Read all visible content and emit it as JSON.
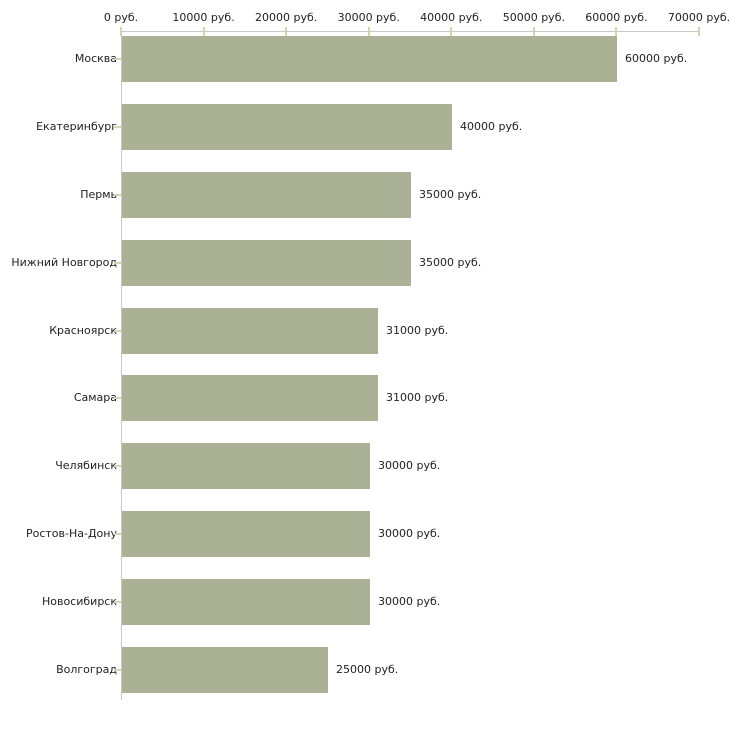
{
  "chart_data": {
    "type": "bar",
    "orientation": "horizontal",
    "title": "",
    "xlabel": "",
    "ylabel": "",
    "unit": "руб.",
    "categories": [
      "Москва",
      "Екатеринбург",
      "Пермь",
      "Нижний Новгород",
      "Красноярск",
      "Самара",
      "Челябинск",
      "Ростов-На-Дону",
      "Новосибирск",
      "Волгоград"
    ],
    "values": [
      60000,
      40000,
      35000,
      35000,
      31000,
      31000,
      30000,
      30000,
      30000,
      25000
    ],
    "value_labels": [
      "60000 руб.",
      "40000 руб.",
      "35000 руб.",
      "35000 руб.",
      "31000 руб.",
      "31000 руб.",
      "30000 руб.",
      "30000 руб.",
      "30000 руб.",
      "25000 руб."
    ],
    "x_ticks": [
      0,
      10000,
      20000,
      30000,
      40000,
      50000,
      60000,
      70000
    ],
    "x_tick_labels": [
      "0 руб.",
      "10000 руб.",
      "20000 руб.",
      "30000 руб.",
      "40000 руб.",
      "50000 руб.",
      "60000 руб.",
      "70000 руб."
    ],
    "xlim": [
      0,
      70000
    ],
    "grid": false,
    "legend_position": "none",
    "colors": {
      "bar": "#abb194",
      "axis_line": "#c8c8c8",
      "tick_mark": "#d6d6ae",
      "text": "#222222",
      "background": "#ffffff"
    }
  }
}
